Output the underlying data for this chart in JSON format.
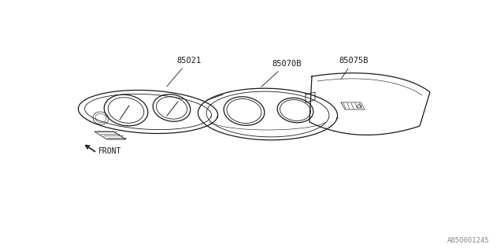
{
  "bg_color": "#ffffff",
  "line_color": "#1a1a1a",
  "text_color": "#1a1a1a",
  "part_numbers": [
    "85021",
    "85070B",
    "85075B"
  ],
  "diagram_id": "A850001245",
  "front_label": "FRONT",
  "label_fontsize": 7.5,
  "small_fontsize": 6.5
}
